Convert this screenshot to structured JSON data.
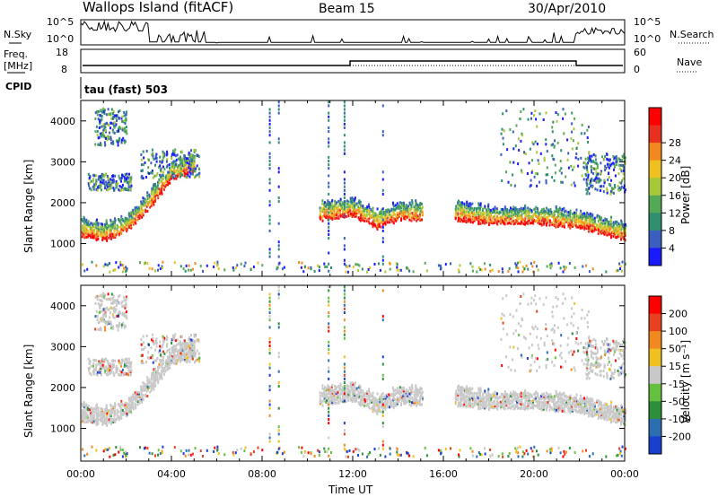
{
  "header": {
    "station": "Wallops Island (fitACF)",
    "beam": "Beam 15",
    "date": "30/Apr/2010"
  },
  "top_panels": {
    "nsky_label": "N.Sky",
    "nsky_ticks": [
      "10^5",
      "10^0"
    ],
    "nsearch_label": "N.Search",
    "nsearch_ticks": [
      "10^5",
      "10^0"
    ],
    "freq_label": "Freq.",
    "freq_unit": "[MHz]",
    "freq_ticks": [
      "18",
      "8"
    ],
    "nave_label": "Nave",
    "nave_ticks": [
      "60",
      "0"
    ],
    "cpid_label": "CPID",
    "cpid_value": "tau (fast) 503"
  },
  "chart_data": [
    {
      "type": "heatmap",
      "name": "power",
      "ylabel": "Slant Range [km]",
      "xlabel": "",
      "ylim": [
        200,
        4500
      ],
      "yticks": [
        "1000",
        "2000",
        "3000",
        "4000"
      ],
      "colorbar": {
        "label": "Power [dB]",
        "range": [
          0,
          32
        ],
        "ticks": [
          "4",
          "8",
          "12",
          "16",
          "20",
          "24",
          "28"
        ]
      },
      "echo_bands": [
        {
          "t": [
            0.0,
            1.0,
            2.0,
            3.0,
            4.0,
            5.0
          ],
          "range_km": [
            1300,
            1200,
            1400,
            2000,
            2700,
            2900
          ]
        },
        {
          "t": [
            10.5,
            12.0,
            13.0,
            14.0,
            15.0
          ],
          "range_km": [
            1700,
            1800,
            1500,
            1700,
            1700
          ]
        },
        {
          "t": [
            16.5,
            18.0,
            20.0,
            22.0,
            24.0
          ],
          "range_km": [
            1700,
            1600,
            1600,
            1500,
            1200
          ]
        }
      ]
    },
    {
      "type": "heatmap",
      "name": "velocity",
      "ylabel": "Slant Range [km]",
      "xlabel": "Time UT",
      "xlim": [
        0,
        24
      ],
      "xticks": [
        "00:00",
        "04:00",
        "08:00",
        "12:00",
        "16:00",
        "20:00",
        "00:00"
      ],
      "ylim": [
        200,
        4500
      ],
      "yticks": [
        "1000",
        "2000",
        "3000",
        "4000"
      ],
      "colorbar": {
        "label": "Velocity [m s⁻¹]",
        "ticks": [
          "200",
          "100",
          "50",
          "15",
          "-15",
          "-50",
          "-100",
          "-200"
        ]
      }
    }
  ],
  "colors": {
    "power_scale": [
      "#1a1aff",
      "#3a5fbf",
      "#2f8f6f",
      "#55a855",
      "#a8c83a",
      "#f0c020",
      "#f08a20",
      "#e83020",
      "#ff0000"
    ],
    "velocity_scale": [
      "#1a3fd0",
      "#2c6fb0",
      "#2e8f3a",
      "#66c040",
      "#c8c8c8",
      "#f0c020",
      "#f08a20",
      "#e84020",
      "#ff0000"
    ]
  }
}
